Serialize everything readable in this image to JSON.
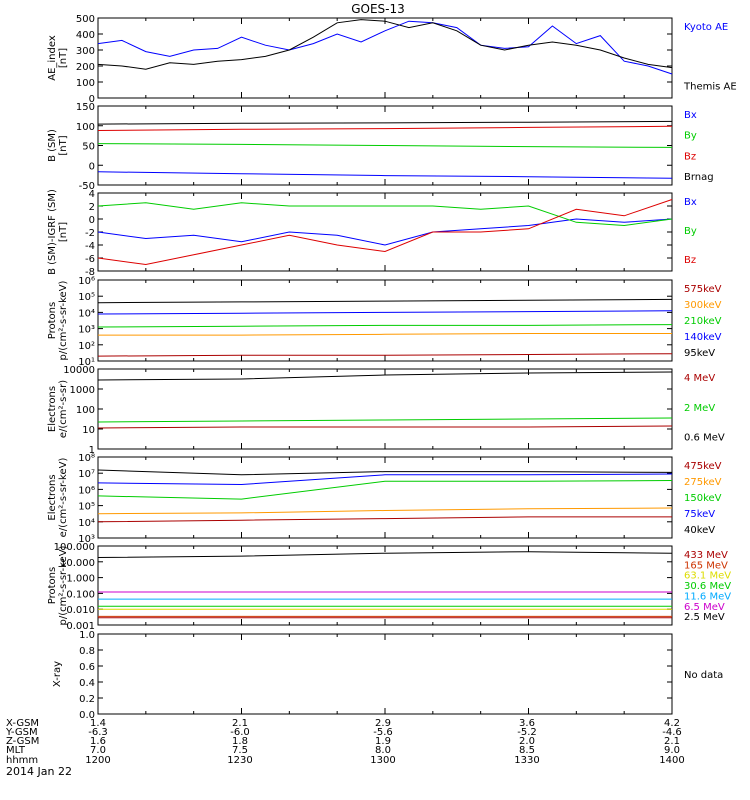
{
  "title": "GOES-13",
  "date": "2014 Jan 22",
  "colors": {
    "black": "#000000",
    "blue": "#0000ff",
    "red": "#dd0000",
    "green": "#00cc00",
    "orange": "#ff9900",
    "darkred": "#aa0000",
    "cyan": "#00aaff",
    "yellow": "#dddd00",
    "magenta": "#cc00cc",
    "brownred": "#cc3300"
  },
  "orbit": {
    "row_labels": [
      "X-GSM",
      "Y-GSM",
      "Z-GSM",
      "MLT",
      "hhmm"
    ],
    "columns": [
      [
        "1.4",
        "-6.3",
        "1.6",
        "7.0",
        "1200"
      ],
      [
        "2.1",
        "-6.0",
        "1.8",
        "7.5",
        "1230"
      ],
      [
        "2.9",
        "-5.6",
        "1.9",
        "8.0",
        "1300"
      ],
      [
        "3.6",
        "-5.2",
        "2.0",
        "8.5",
        "1330"
      ],
      [
        "4.2",
        "-4.6",
        "2.1",
        "9.0",
        "1400"
      ]
    ]
  },
  "chart_data": [
    {
      "type": "line",
      "ylabel": "AE_index\n[nT]",
      "ylim": [
        0,
        500
      ],
      "yticks": [
        "0",
        "100",
        "200",
        "300",
        "400",
        "500"
      ],
      "xlim": [
        0,
        120
      ],
      "series": [
        {
          "name": "Kyoto AE",
          "color": "blue",
          "x": [
            0,
            5,
            10,
            15,
            20,
            25,
            30,
            35,
            40,
            45,
            50,
            55,
            60,
            65,
            70,
            75,
            80,
            85,
            90,
            95,
            100,
            105,
            110,
            115,
            120
          ],
          "values": [
            340,
            360,
            290,
            260,
            300,
            310,
            380,
            330,
            300,
            340,
            400,
            350,
            420,
            480,
            470,
            440,
            330,
            310,
            320,
            450,
            340,
            390,
            230,
            200,
            150
          ]
        },
        {
          "name": "Themis AE",
          "color": "black",
          "x": [
            0,
            5,
            10,
            15,
            20,
            25,
            30,
            35,
            40,
            45,
            50,
            55,
            60,
            65,
            70,
            75,
            80,
            85,
            90,
            95,
            100,
            105,
            110,
            115,
            120
          ],
          "values": [
            210,
            200,
            180,
            220,
            210,
            230,
            240,
            260,
            300,
            380,
            470,
            490,
            480,
            440,
            470,
            420,
            330,
            300,
            330,
            350,
            330,
            300,
            250,
            210,
            190
          ]
        }
      ]
    },
    {
      "type": "line",
      "ylabel": "B (SM)\n[nT]",
      "ylim": [
        -60,
        150
      ],
      "yticks": [
        "-50",
        "0",
        "50",
        "100",
        "150"
      ],
      "xlim": [
        0,
        120
      ],
      "extra_legend": [
        {
          "name": "Brnag",
          "color": "black"
        }
      ],
      "series": [
        {
          "name": "Bx",
          "color": "blue",
          "x": [
            0,
            30,
            60,
            90,
            120
          ],
          "values": [
            -25,
            -30,
            -35,
            -38,
            -42
          ]
        },
        {
          "name": "By",
          "color": "green",
          "x": [
            0,
            30,
            60,
            90,
            120
          ],
          "values": [
            50,
            48,
            45,
            42,
            40
          ]
        },
        {
          "name": "Bz",
          "color": "red",
          "x": [
            0,
            30,
            60,
            90,
            120
          ],
          "values": [
            85,
            88,
            90,
            93,
            96
          ]
        },
        {
          "name": "",
          "color": "black",
          "x": [
            0,
            30,
            60,
            90,
            120
          ],
          "values": [
            102,
            104,
            105,
            107,
            109
          ]
        }
      ]
    },
    {
      "type": "line",
      "ylabel": "B (SM)-IGRF (SM)\n[nT]",
      "ylim": [
        -8,
        4
      ],
      "yticks": [
        "-8",
        "-6",
        "-4",
        "-2",
        "0",
        "2",
        "4"
      ],
      "xlim": [
        0,
        120
      ],
      "series": [
        {
          "name": "Bx",
          "color": "blue",
          "x": [
            0,
            10,
            20,
            30,
            40,
            50,
            60,
            70,
            80,
            90,
            100,
            110,
            120
          ],
          "values": [
            -2,
            -3,
            -2.5,
            -3.5,
            -2,
            -2.5,
            -4,
            -2,
            -1.5,
            -1,
            0,
            -0.5,
            0
          ]
        },
        {
          "name": "By",
          "color": "green",
          "x": [
            0,
            10,
            20,
            30,
            40,
            50,
            60,
            70,
            80,
            90,
            100,
            110,
            120
          ],
          "values": [
            2,
            2.5,
            1.5,
            2.5,
            2,
            2,
            2,
            2,
            1.5,
            2,
            -0.5,
            -1,
            0
          ]
        },
        {
          "name": "Bz",
          "color": "red",
          "x": [
            0,
            10,
            20,
            30,
            40,
            50,
            60,
            70,
            80,
            90,
            100,
            110,
            120
          ],
          "values": [
            -6,
            -7,
            -5.5,
            -4,
            -2.5,
            -4,
            -5,
            -2,
            -2,
            -1.5,
            1.5,
            0.5,
            3
          ]
        }
      ]
    },
    {
      "type": "line",
      "ylabel": "Protons\np/(cm²-s-sr-keV)",
      "log": true,
      "ylim": [
        1,
        6
      ],
      "yticks": [
        "10¹",
        "10²",
        "10³",
        "10⁴",
        "10⁵",
        "10⁶"
      ],
      "xlim": [
        0,
        120
      ],
      "series": [
        {
          "name": "575keV",
          "color": "darkred",
          "x": [
            0,
            30,
            60,
            90,
            120
          ],
          "values": [
            1.3,
            1.35,
            1.35,
            1.4,
            1.45
          ]
        },
        {
          "name": "300keV",
          "color": "orange",
          "x": [
            0,
            30,
            60,
            90,
            120
          ],
          "values": [
            2.6,
            2.6,
            2.65,
            2.7,
            2.7
          ]
        },
        {
          "name": "210keV",
          "color": "green",
          "x": [
            0,
            30,
            60,
            90,
            120
          ],
          "values": [
            3.1,
            3.15,
            3.2,
            3.2,
            3.25
          ]
        },
        {
          "name": "140keV",
          "color": "blue",
          "x": [
            0,
            30,
            60,
            90,
            120
          ],
          "values": [
            3.9,
            3.95,
            4.0,
            4.05,
            4.1
          ]
        },
        {
          "name": "95keV",
          "color": "black",
          "x": [
            0,
            30,
            60,
            90,
            120
          ],
          "values": [
            4.6,
            4.65,
            4.7,
            4.75,
            4.8
          ]
        }
      ]
    },
    {
      "type": "line",
      "ylabel": "Electrons\ne/(cm²-s-sr)",
      "log": true,
      "ylim": [
        0,
        4
      ],
      "yticks": [
        "1",
        "10",
        "100",
        "1000",
        "10000"
      ],
      "xlim": [
        0,
        120
      ],
      "series": [
        {
          "name": "4 MeV",
          "color": "darkred",
          "x": [
            0,
            30,
            60,
            90,
            120
          ],
          "values": [
            1.05,
            1.1,
            1.1,
            1.1,
            1.15
          ]
        },
        {
          "name": "2 MeV",
          "color": "green",
          "x": [
            0,
            30,
            60,
            90,
            120
          ],
          "values": [
            1.35,
            1.4,
            1.45,
            1.5,
            1.55
          ]
        },
        {
          "name": "0.6 MeV",
          "color": "black",
          "x": [
            0,
            30,
            60,
            90,
            120
          ],
          "values": [
            3.45,
            3.5,
            3.7,
            3.8,
            3.85
          ]
        }
      ]
    },
    {
      "type": "line",
      "ylabel": "Electrons\ne/(cm²-s-sr-keV)",
      "log": true,
      "ylim": [
        3,
        8
      ],
      "yticks": [
        "10³",
        "10⁴",
        "10⁵",
        "10⁶",
        "10⁷",
        "10⁸"
      ],
      "xlim": [
        0,
        120
      ],
      "series": [
        {
          "name": "475keV",
          "color": "darkred",
          "x": [
            0,
            30,
            60,
            90,
            120
          ],
          "values": [
            4.0,
            4.1,
            4.2,
            4.3,
            4.3
          ]
        },
        {
          "name": "275keV",
          "color": "orange",
          "x": [
            0,
            30,
            60,
            90,
            120
          ],
          "values": [
            4.5,
            4.55,
            4.7,
            4.8,
            4.85
          ]
        },
        {
          "name": "150keV",
          "color": "green",
          "x": [
            0,
            30,
            60,
            90,
            120
          ],
          "values": [
            5.6,
            5.4,
            6.5,
            6.5,
            6.55
          ]
        },
        {
          "name": "75keV",
          "color": "blue",
          "x": [
            0,
            30,
            60,
            90,
            120
          ],
          "values": [
            6.4,
            6.3,
            6.9,
            6.9,
            6.95
          ]
        },
        {
          "name": "40keV",
          "color": "black",
          "x": [
            0,
            30,
            60,
            90,
            120
          ],
          "values": [
            7.2,
            6.9,
            7.1,
            7.1,
            7.05
          ]
        }
      ]
    },
    {
      "type": "line",
      "ylabel": "Protons\np/(cm²-s-sr-keV)",
      "log": true,
      "ylim": [
        -3.5,
        2
      ],
      "yticks": [
        "0.001",
        "0.010",
        "0.100",
        "1.000",
        "10.000",
        "100.000"
      ],
      "xlim": [
        0,
        120
      ],
      "series": [
        {
          "name": "433 MeV",
          "color": "darkred",
          "x": [
            0,
            30,
            60,
            90,
            120
          ],
          "values": [
            -3,
            -3,
            -3,
            -3,
            -3
          ]
        },
        {
          "name": "165 MeV",
          "color": "brownred",
          "x": [
            0,
            30,
            60,
            90,
            120
          ],
          "values": [
            -2.9,
            -2.9,
            -2.9,
            -2.9,
            -2.9
          ]
        },
        {
          "name": "63.1 MeV",
          "color": "yellow",
          "x": [
            0,
            30,
            60,
            90,
            120
          ],
          "values": [
            -2.4,
            -2.4,
            -2.4,
            -2.4,
            -2.4
          ]
        },
        {
          "name": "30.6 MeV",
          "color": "green",
          "x": [
            0,
            30,
            60,
            90,
            120
          ],
          "values": [
            -2.2,
            -2.2,
            -2.2,
            -2.2,
            -2.2
          ]
        },
        {
          "name": "11.6 MeV",
          "color": "cyan",
          "x": [
            0,
            30,
            60,
            90,
            120
          ],
          "values": [
            -1.7,
            -1.7,
            -1.7,
            -1.7,
            -1.7
          ]
        },
        {
          "name": "6.5 MeV",
          "color": "magenta",
          "x": [
            0,
            30,
            60,
            90,
            120
          ],
          "values": [
            -1.2,
            -1.2,
            -1.2,
            -1.2,
            -1.2
          ]
        },
        {
          "name": "2.5 MeV",
          "color": "black",
          "x": [
            0,
            30,
            60,
            90,
            120
          ],
          "values": [
            1.2,
            1.3,
            1.5,
            1.6,
            1.5
          ]
        }
      ]
    },
    {
      "type": "line",
      "ylabel": "X-ray",
      "ylim": [
        0,
        1
      ],
      "yticks": [
        "0.0",
        "0.2",
        "0.4",
        "0.6",
        "0.8",
        "1.0"
      ],
      "xlim": [
        0,
        120
      ],
      "series": [],
      "no_data": "No data"
    }
  ]
}
